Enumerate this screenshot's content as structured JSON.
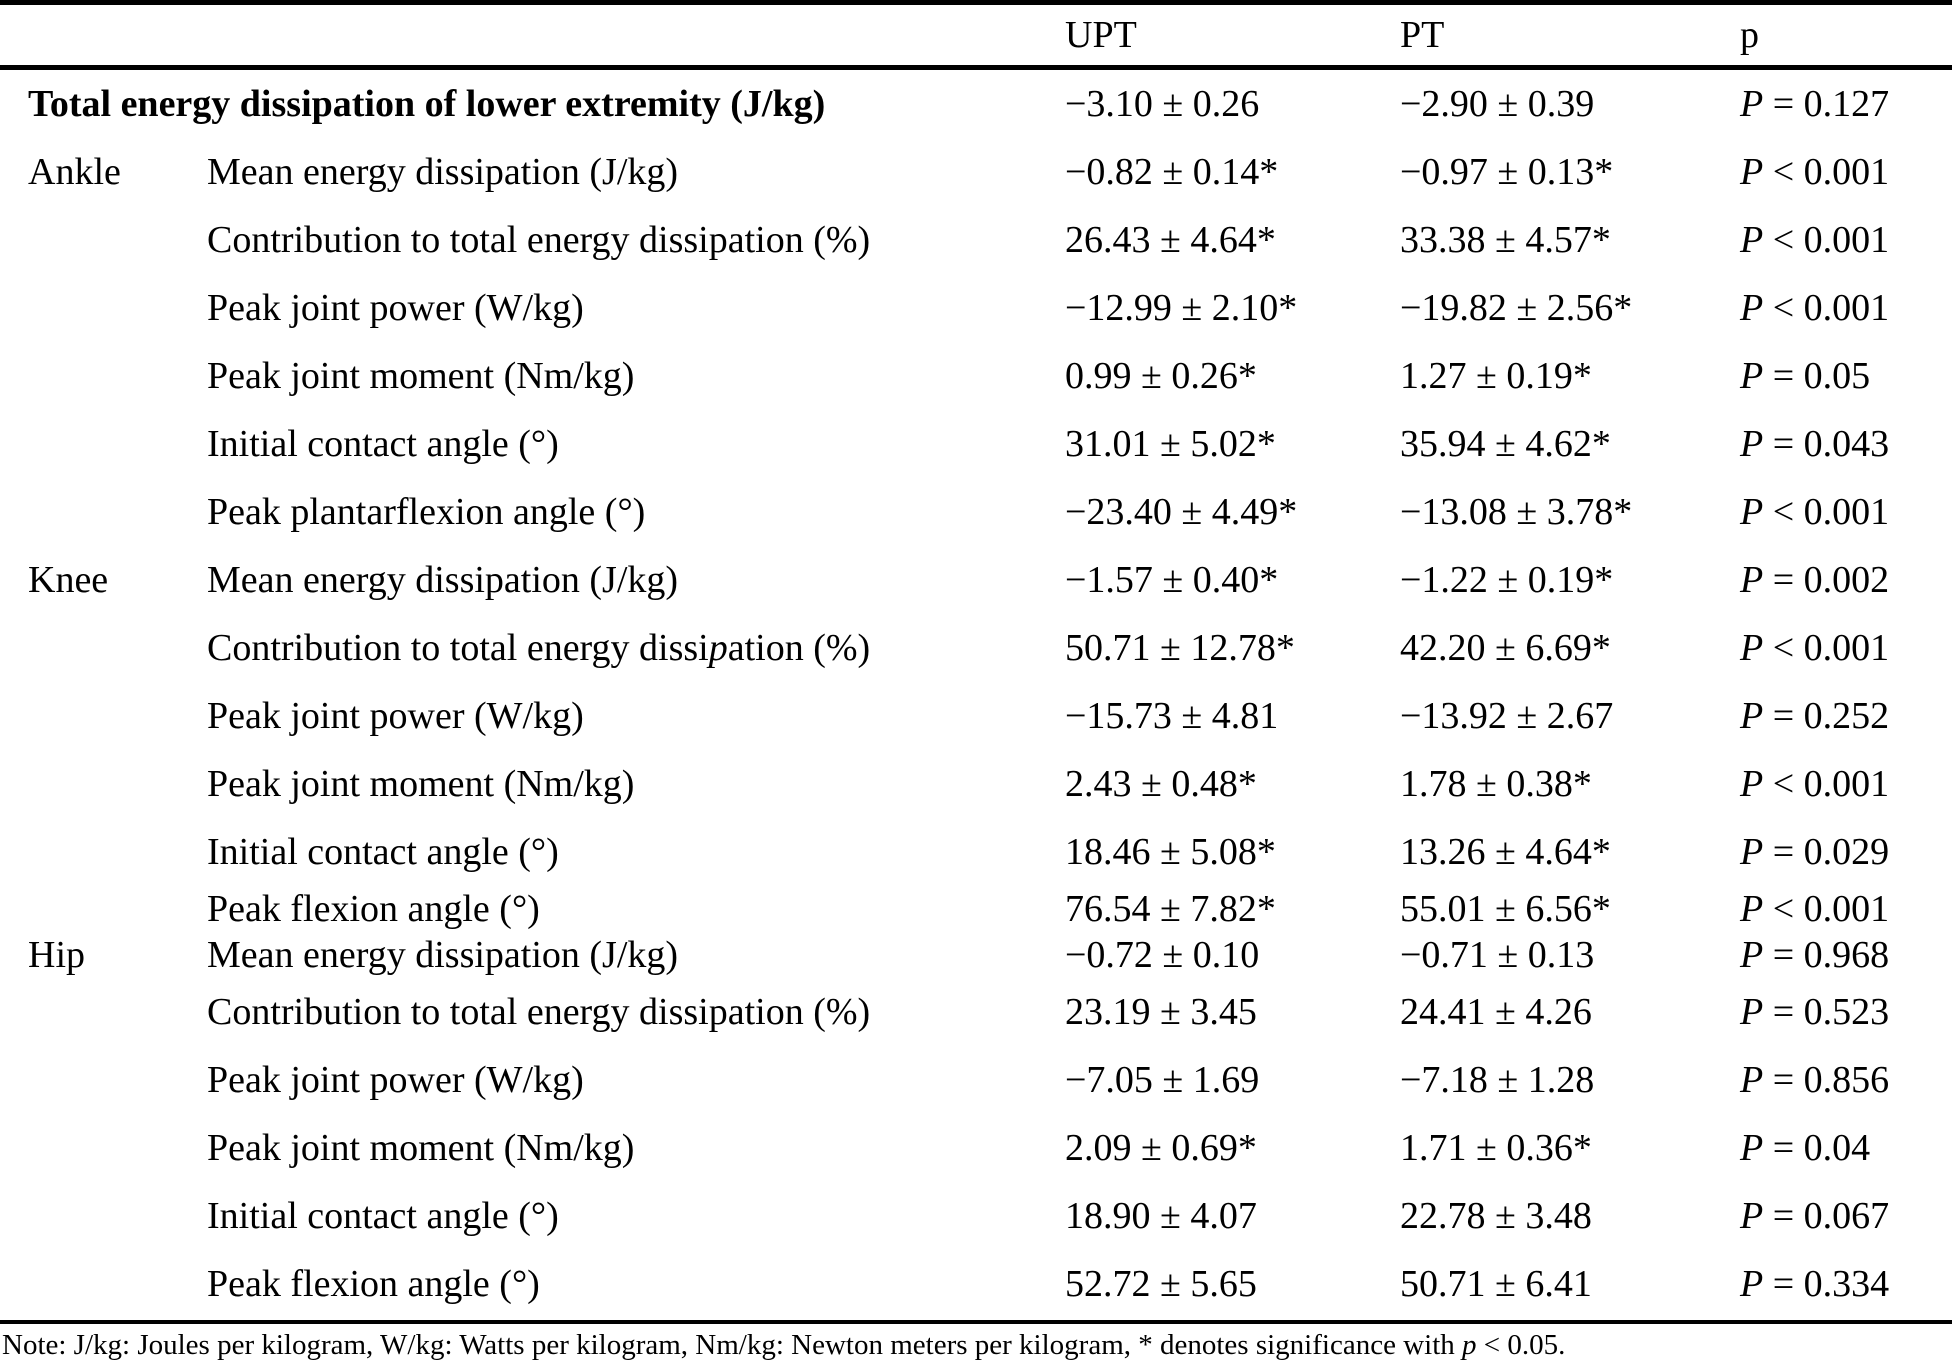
{
  "header": {
    "upt": "UPT",
    "pt": "PT",
    "p": "p"
  },
  "rows": [
    {
      "joint": "",
      "bold": true,
      "label": "Total energy dissipation of lower extremity (J/kg)",
      "upt": "−3.10 ± 0.26",
      "pt": "−2.90 ± 0.39",
      "p": {
        "var": "P",
        "rest": " = 0.127"
      }
    },
    {
      "joint": "Ankle",
      "label": "Mean energy dissipation (J/kg)",
      "upt": "−0.82 ± 0.14*",
      "pt": "−0.97 ± 0.13*",
      "p": {
        "var": "P",
        "rest": " < 0.001"
      }
    },
    {
      "joint": "",
      "label": "Contribution to total energy dissipation (%)",
      "upt": "26.43 ± 4.64*",
      "pt": "33.38 ± 4.57*",
      "p": {
        "var": "P",
        "rest": " < 0.001"
      }
    },
    {
      "joint": "",
      "label": "Peak joint power (W/kg)",
      "upt": "−12.99 ± 2.10*",
      "pt": "−19.82 ± 2.56*",
      "p": {
        "var": "P",
        "rest": " < 0.001"
      }
    },
    {
      "joint": "",
      "label": "Peak joint moment (Nm/kg)",
      "upt": "0.99 ± 0.26*",
      "pt": "1.27 ± 0.19*",
      "p": {
        "var": "P",
        "rest": " = 0.05"
      }
    },
    {
      "joint": "",
      "label": "Initial contact angle (°)",
      "upt": "31.01 ± 5.02*",
      "pt": "35.94 ± 4.62*",
      "p": {
        "var": "P",
        "rest": " = 0.043"
      }
    },
    {
      "joint": "",
      "label": "Peak plantarflexion angle (°)",
      "upt": "−23.40 ± 4.49*",
      "pt": "−13.08 ± 3.78*",
      "p": {
        "var": "P",
        "rest": " < 0.001"
      }
    },
    {
      "joint": "Knee",
      "label": "Mean energy dissipation (J/kg)",
      "upt": "−1.57 ± 0.40*",
      "pt": "−1.22 ± 0.19*",
      "p": {
        "var": "P",
        "rest": " = 0.002"
      }
    },
    {
      "joint": "",
      "segments": [
        {
          "text": "Contribution to total energy dissi"
        },
        {
          "text": "p",
          "italic": true
        },
        {
          "text": "ation (%)"
        }
      ],
      "upt": "50.71 ± 12.78*",
      "pt": "42.20 ± 6.69*",
      "p": {
        "var": "P",
        "rest": " < 0.001"
      }
    },
    {
      "joint": "",
      "label": "Peak joint power (W/kg)",
      "upt": "−15.73 ± 4.81",
      "pt": "−13.92 ± 2.67",
      "p": {
        "var": "P",
        "rest": " = 0.252"
      }
    },
    {
      "joint": "",
      "label": "Peak joint moment (Nm/kg)",
      "upt": "2.43 ± 0.48*",
      "pt": "1.78 ± 0.38*",
      "p": {
        "var": "P",
        "rest": " < 0.001"
      }
    },
    {
      "joint": "",
      "label": "Initial contact angle (°)",
      "upt": "18.46 ± 5.08*",
      "pt": "13.26 ± 4.64*",
      "p": {
        "var": "P",
        "rest": " = 0.029"
      }
    },
    {
      "joint": "",
      "tight": true,
      "label": "Peak flexion angle (°)",
      "upt": "76.54 ± 7.82*",
      "pt": "55.01 ± 6.56*",
      "p": {
        "var": "P",
        "rest": " < 0.001"
      }
    },
    {
      "joint": "Hip",
      "tight": true,
      "label": "Mean energy dissipation (J/kg)",
      "upt": "−0.72 ± 0.10",
      "pt": "−0.71 ± 0.13",
      "p": {
        "var": "P",
        "rest": " = 0.968"
      }
    },
    {
      "joint": "",
      "label": "Contribution to total energy dissipation (%)",
      "upt": "23.19 ± 3.45",
      "pt": "24.41 ± 4.26",
      "p": {
        "var": "P",
        "rest": " = 0.523"
      }
    },
    {
      "joint": "",
      "label": "Peak joint power (W/kg)",
      "upt": "−7.05 ± 1.69",
      "pt": "−7.18 ± 1.28",
      "p": {
        "var": "P",
        "rest": " = 0.856"
      }
    },
    {
      "joint": "",
      "label": "Peak joint moment (Nm/kg)",
      "upt": "2.09 ± 0.69*",
      "pt": "1.71 ± 0.36*",
      "p": {
        "var": "P",
        "rest": " = 0.04"
      }
    },
    {
      "joint": "",
      "label": "Initial contact angle (°)",
      "upt": "18.90 ± 4.07",
      "pt": "22.78 ± 3.48",
      "p": {
        "var": "P",
        "rest": " = 0.067"
      }
    },
    {
      "joint": "",
      "label": "Peak flexion angle (°)",
      "upt": "52.72 ± 5.65",
      "pt": "50.71 ± 6.41",
      "p": {
        "var": "P",
        "rest": " = 0.334"
      }
    }
  ],
  "footnote": {
    "pre": "Note: J/kg: Joules per kilogram, W/kg: Watts per kilogram, Nm/kg: Newton meters per kilogram, * denotes significance with ",
    "italic": "p",
    "post": " < 0.05."
  }
}
